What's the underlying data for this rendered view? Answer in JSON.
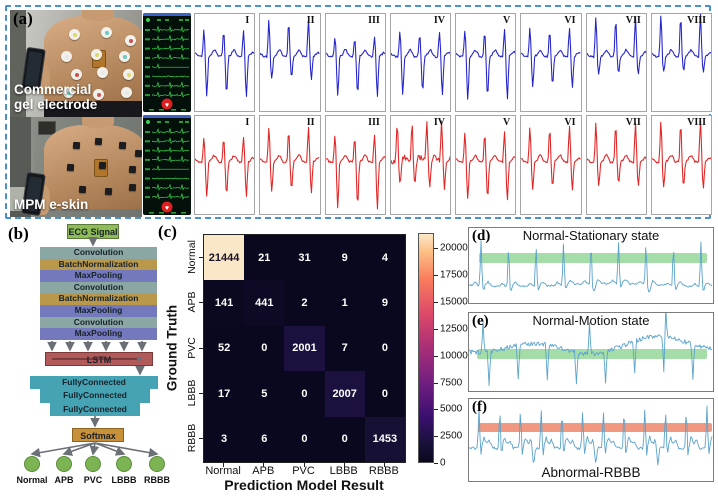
{
  "panels": {
    "a": "(a)",
    "b": "(b)",
    "c": "(c)",
    "d": "(d)",
    "e": "(e)",
    "f": "(f)"
  },
  "panel_a": {
    "photo_top_label_lines": [
      "Commercial",
      "gel electrode"
    ],
    "photo_bottom_label": "MPM e-skin",
    "lead_labels": [
      "I",
      "II",
      "III",
      "IV",
      "V",
      "VI",
      "VII",
      "VIII"
    ],
    "rows": [
      {
        "name": "gel-electrode-ecg",
        "color": "#2424cd",
        "leads": [
          {
            "u": 0.3,
            "d": 0.45
          },
          {
            "u": 0.42,
            "d": 0.25
          },
          {
            "u": 0.22,
            "d": 0.45
          },
          {
            "u": 0.28,
            "d": 0.42
          },
          {
            "u": 0.3,
            "d": 0.48
          },
          {
            "u": 0.32,
            "d": 0.34
          },
          {
            "u": 0.45,
            "d": 0.2
          },
          {
            "u": 0.48,
            "d": 0.17
          }
        ]
      },
      {
        "name": "mpm-eskin-ecg",
        "color": "#e22424",
        "leads": [
          {
            "u": 0.28,
            "d": 0.38
          },
          {
            "u": 0.38,
            "d": 0.33
          },
          {
            "u": 0.3,
            "d": 0.52
          },
          {
            "u": 0.45,
            "d": 0.28,
            "beats": 4,
            "noise": 2.6
          },
          {
            "u": 0.33,
            "d": 0.42
          },
          {
            "u": 0.4,
            "d": 0.3
          },
          {
            "u": 0.44,
            "d": 0.26
          },
          {
            "u": 0.46,
            "d": 0.28
          }
        ]
      }
    ],
    "monitor_accent": "#3bd34f",
    "monitor_bar": "#3b62c8",
    "heart_color": "#e02020"
  },
  "flowchart": {
    "input": {
      "label": "ECG Signal",
      "color": "#8fbc58",
      "border": "#5a7a3a"
    },
    "stack": [
      {
        "label": "Convolution",
        "color": "#8ba7a3"
      },
      {
        "label": "BatchNormalization",
        "color": "#b9984c"
      },
      {
        "label": "MaxPooling",
        "color": "#7479bd"
      },
      {
        "label": "Convolution",
        "color": "#8ba7a3"
      },
      {
        "label": "BatchNormalization",
        "color": "#b9984c"
      },
      {
        "label": "MaxPooling",
        "color": "#7479bd"
      },
      {
        "label": "Convolution",
        "color": "#8ba7a3"
      },
      {
        "label": "MaxPooling",
        "color": "#7479bd"
      }
    ],
    "lstm": {
      "label": "LSTM",
      "color": "#b25a5a",
      "border": "#7a3a3a"
    },
    "fully_connected": [
      "FullyConnected",
      "FullyConnected",
      "FullyConnected"
    ],
    "fc_color": "#46a3b4",
    "softmax": {
      "label": "Softmax",
      "color": "#c89038",
      "border": "#8a6420"
    },
    "outputs": [
      "Normal",
      "APB",
      "PVC",
      "LBBB",
      "RBBB"
    ],
    "output_color": "#7cb454",
    "arrow_color": "#6a7076"
  },
  "chart_data": [
    {
      "type": "heatmap",
      "xlabel": "Prediction Model Result",
      "ylabel": "Ground Truth",
      "x_categories": [
        "Normal",
        "APB",
        "PVC",
        "LBBB",
        "RBBB"
      ],
      "y_categories": [
        "Normal",
        "APB",
        "PVC",
        "LBBB",
        "RBBB"
      ],
      "matrix": [
        [
          21444,
          21,
          31,
          9,
          4
        ],
        [
          141,
          441,
          2,
          1,
          9
        ],
        [
          52,
          0,
          2001,
          7,
          0
        ],
        [
          17,
          5,
          0,
          2007,
          0
        ],
        [
          3,
          6,
          0,
          0,
          1453
        ]
      ],
      "vmin": 0,
      "vmax": 21444,
      "colormap": "magma",
      "colorbar_ticks": [
        0,
        2500,
        5000,
        7500,
        10000,
        12500,
        15000,
        17500,
        20000
      ],
      "legend_position": "right-colorbar",
      "grid": false
    },
    {
      "type": "line",
      "title": "Normal-Stationary state",
      "band_color": "#8ed494",
      "line_color": "#5ba3cc",
      "beats": 9
    },
    {
      "type": "line",
      "title": "Normal-Motion state",
      "band_color": "#8ed494",
      "line_color": "#5ba3cc",
      "beats": 9
    },
    {
      "type": "line",
      "title": "Abnormal-RBBB",
      "band_color": "#ef8e72",
      "line_color": "#5ba3cc",
      "beats": 12
    }
  ]
}
